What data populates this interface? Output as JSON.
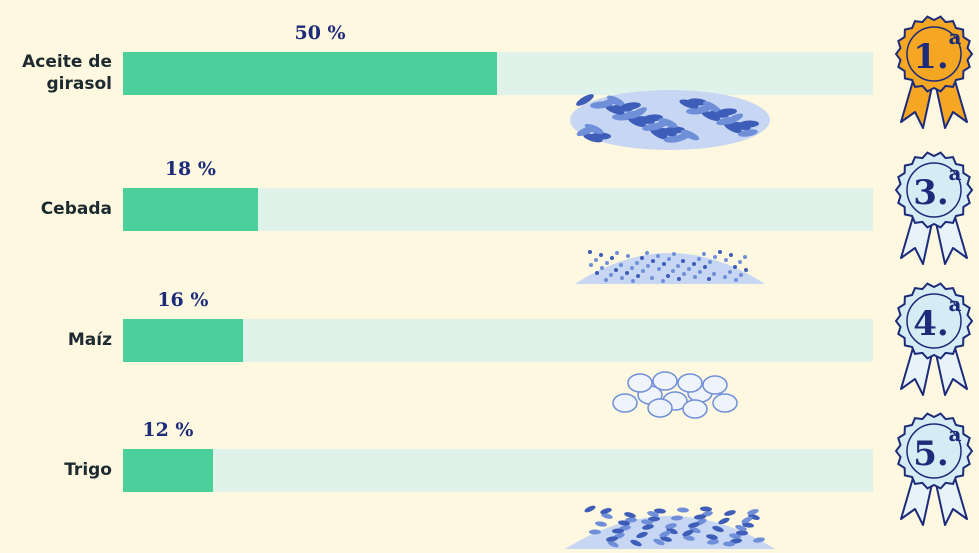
{
  "chart_data": {
    "type": "bar",
    "orientation": "horizontal",
    "categories": [
      "Aceite de girasol",
      "Cebada",
      "Maíz",
      "Trigo"
    ],
    "category_lines": [
      [
        "Aceite de",
        "girasol"
      ],
      [
        "Cebada"
      ],
      [
        "Maíz"
      ],
      [
        "Trigo"
      ]
    ],
    "values": [
      50,
      18,
      16,
      12
    ],
    "value_labels": [
      "50 %",
      "18 %",
      "16 %",
      "12 %"
    ],
    "xlim": [
      0,
      100
    ],
    "ranks": [
      {
        "number": "1.",
        "suffix": "a",
        "style": "gold"
      },
      {
        "number": "3.",
        "suffix": "a",
        "style": "blue"
      },
      {
        "number": "4.",
        "suffix": "a",
        "style": "blue"
      },
      {
        "number": "5.",
        "suffix": "a",
        "style": "blue"
      }
    ],
    "grain_icons": [
      "sunflower-seeds-icon",
      "barley-grain-icon",
      "maize-kernels-icon",
      "wheat-grain-icon"
    ],
    "colors": {
      "background": "#fdf8df",
      "bar_fill": "#4bcf9b",
      "bar_track": "#dff3ea",
      "value_label": "#1c2b7a",
      "medal_gold": "#f5a623",
      "medal_blue": "#d6ecf5",
      "medal_ink": "#1c2b7a",
      "grain": "#6f8fd8"
    },
    "grid": false,
    "legend": "none"
  }
}
